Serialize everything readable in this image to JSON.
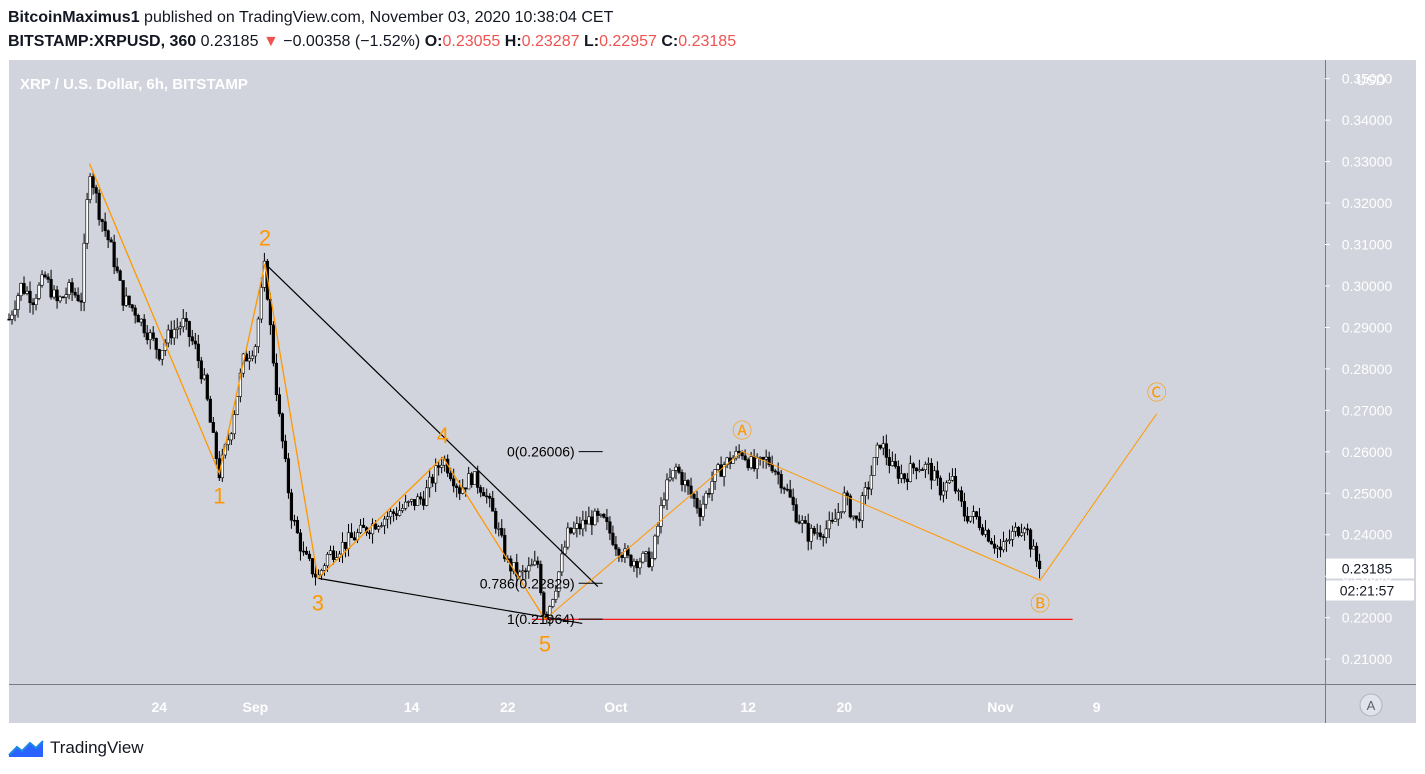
{
  "header": {
    "line1_user": "BitcoinMaximus1",
    "line1_rest": " published on TradingView.com, November 03, 2020 10:38:04 CET",
    "symbol": "BITSTAMP:XRPUSD, 360",
    "last": "0.23185",
    "arrow": "▼",
    "change": "−0.00358 (−1.52%)",
    "o_label": "O:",
    "o_val": "0.23055",
    "h_label": "H:",
    "h_val": "0.23287",
    "l_label": "L:",
    "l_val": "0.22957",
    "c_label": "C:",
    "c_val": "0.23185"
  },
  "branding": {
    "logo_text": "TradingView"
  },
  "colors": {
    "bg": "#d1d4dc",
    "wave": "#ff9800",
    "trend": "#000000",
    "support": "#ff0000",
    "candle_up": "#ffffff",
    "candle_down": "#000000"
  },
  "chart_data": {
    "type": "candlestick",
    "title": "XRP / U.S. Dollar, 6h, BITSTAMP",
    "ylabel": "USD",
    "ylim": [
      0.204,
      0.3545
    ],
    "xlim": [
      -12.5,
      97
    ],
    "y_ticks": [
      0.21,
      0.22,
      0.23,
      0.24,
      0.25,
      0.26,
      0.27,
      0.28,
      0.29,
      0.3,
      0.31,
      0.32,
      0.33,
      0.34,
      0.35
    ],
    "y_tick_labels": [
      "0.21000",
      "0.22000",
      "0.23000",
      "0.24000",
      "0.25000",
      "0.26000",
      "0.27000",
      "0.28000",
      "0.29000",
      "0.30000",
      "0.31000",
      "0.32000",
      "0.33000",
      "0.34000",
      "0.35000"
    ],
    "x_ticks": [
      {
        "label": "24",
        "day": 0
      },
      {
        "label": "Sep",
        "day": 8
      },
      {
        "label": "14",
        "day": 21
      },
      {
        "label": "22",
        "day": 29
      },
      {
        "label": "Oct",
        "day": 38
      },
      {
        "label": "12",
        "day": 49
      },
      {
        "label": "20",
        "day": 57
      },
      {
        "label": "Nov",
        "day": 70
      },
      {
        "label": "9",
        "day": 78
      }
    ],
    "price_path": [
      [
        -12.5,
        0.292
      ],
      [
        -11.5,
        0.3
      ],
      [
        -10.5,
        0.297
      ],
      [
        -9.5,
        0.302
      ],
      [
        -8.5,
        0.296
      ],
      [
        -7.5,
        0.299
      ],
      [
        -6.5,
        0.297
      ],
      [
        -5.8,
        0.329
      ],
      [
        -5,
        0.318
      ],
      [
        -4,
        0.309
      ],
      [
        -3,
        0.297
      ],
      [
        -2,
        0.294
      ],
      [
        -1,
        0.289
      ],
      [
        0,
        0.284
      ],
      [
        1,
        0.289
      ],
      [
        2,
        0.291
      ],
      [
        3,
        0.285
      ],
      [
        3.8,
        0.276
      ],
      [
        4.3,
        0.266
      ],
      [
        5,
        0.2548
      ],
      [
        6,
        0.266
      ],
      [
        7,
        0.282
      ],
      [
        8,
        0.286
      ],
      [
        8.8,
        0.3054
      ],
      [
        9.3,
        0.288
      ],
      [
        10,
        0.268
      ],
      [
        11,
        0.245
      ],
      [
        12,
        0.235
      ],
      [
        13.2,
        0.2295
      ],
      [
        14,
        0.235
      ],
      [
        16,
        0.239
      ],
      [
        18,
        0.243
      ],
      [
        20,
        0.246
      ],
      [
        22,
        0.249
      ],
      [
        23.6,
        0.2587
      ],
      [
        25,
        0.251
      ],
      [
        26,
        0.254
      ],
      [
        27,
        0.251
      ],
      [
        28,
        0.243
      ],
      [
        29,
        0.233
      ],
      [
        30,
        0.23
      ],
      [
        31.5,
        0.233
      ],
      [
        32.1,
        0.2196
      ],
      [
        33,
        0.228
      ],
      [
        34,
        0.24
      ],
      [
        36,
        0.244
      ],
      [
        37,
        0.243
      ],
      [
        38,
        0.238
      ],
      [
        39,
        0.234
      ],
      [
        41,
        0.234
      ],
      [
        42,
        0.25
      ],
      [
        43,
        0.256
      ],
      [
        44,
        0.251
      ],
      [
        45,
        0.246
      ],
      [
        46,
        0.253
      ],
      [
        47,
        0.257
      ],
      [
        48.5,
        0.2601
      ],
      [
        49.5,
        0.256
      ],
      [
        50.5,
        0.258
      ],
      [
        51,
        0.257
      ],
      [
        52,
        0.252
      ],
      [
        53,
        0.245
      ],
      [
        54,
        0.24
      ],
      [
        55,
        0.241
      ],
      [
        56,
        0.242
      ],
      [
        57,
        0.249
      ],
      [
        58,
        0.243
      ],
      [
        59,
        0.252
      ],
      [
        60,
        0.2625
      ],
      [
        61,
        0.256
      ],
      [
        62,
        0.254
      ],
      [
        63,
        0.257
      ],
      [
        64,
        0.256
      ],
      [
        65,
        0.251
      ],
      [
        66,
        0.253
      ],
      [
        67,
        0.245
      ],
      [
        68,
        0.244
      ],
      [
        69,
        0.24
      ],
      [
        70,
        0.236
      ],
      [
        71,
        0.24
      ],
      [
        72,
        0.243
      ],
      [
        72.8,
        0.235
      ],
      [
        73.3,
        0.2318
      ]
    ],
    "wave_count": {
      "points": [
        {
          "label": "",
          "day": -5.8,
          "price": 0.3295
        },
        {
          "label": "1",
          "day": 5,
          "price": 0.2548
        },
        {
          "label": "2",
          "day": 8.8,
          "price": 0.3054
        },
        {
          "label": "3",
          "day": 13.2,
          "price": 0.2295
        },
        {
          "label": "4",
          "day": 23.6,
          "price": 0.2587
        },
        {
          "label": "5",
          "day": 32.1,
          "price": 0.2196
        }
      ],
      "corrective": [
        {
          "label": "Ⓐ",
          "day": 48.5,
          "price": 0.2601
        },
        {
          "label": "Ⓑ",
          "day": 73.3,
          "price": 0.229
        },
        {
          "label": "Ⓒ",
          "day": 83,
          "price": 0.2692
        }
      ]
    },
    "trendlines": [
      {
        "from": [
          8.8,
          0.3054
        ],
        "to": [
          36.5,
          0.2275
        ]
      },
      {
        "from": [
          13.2,
          0.2295
        ],
        "to": [
          35.2,
          0.2186
        ]
      }
    ],
    "fib_levels": [
      {
        "label": "0(0.26006)",
        "value": 0.26006
      },
      {
        "label": "0.786(0.22829)",
        "value": 0.22829
      },
      {
        "label": "1(0.21964)",
        "value": 0.21964
      }
    ],
    "support_line": {
      "value": 0.2196,
      "from_day": 31,
      "to_day": 76
    },
    "last_price": {
      "label": "0.23185",
      "value": 0.23185
    },
    "countdown": "02:21:57",
    "auto_scale_button": "A"
  }
}
